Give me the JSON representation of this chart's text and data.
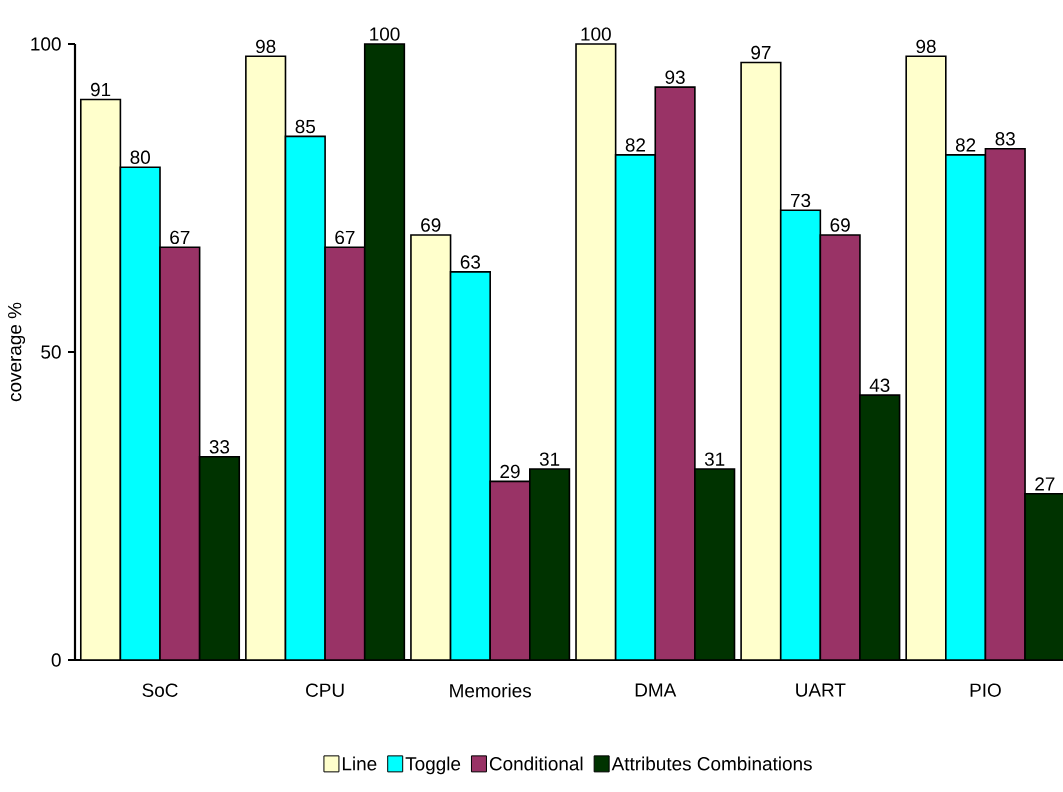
{
  "chart_data": {
    "type": "bar",
    "ylabel": "coverage %",
    "categories": [
      "SoC",
      "CPU",
      "Memories",
      "DMA",
      "UART",
      "PIO"
    ],
    "series": [
      {
        "name": "Line",
        "color": "#ffffcc",
        "values": [
          91,
          98,
          69,
          100,
          97,
          98
        ]
      },
      {
        "name": "Toggle",
        "color": "#00ffff",
        "values": [
          80,
          85,
          63,
          82,
          73,
          82
        ]
      },
      {
        "name": "Conditional",
        "color": "#993366",
        "values": [
          67,
          67,
          29,
          93,
          69,
          83
        ]
      },
      {
        "name": "Attributes Combinations",
        "color": "#003300",
        "values": [
          33,
          100,
          31,
          31,
          43,
          27
        ]
      }
    ],
    "ylim": [
      0,
      100
    ],
    "yticks": [
      0,
      50,
      100
    ],
    "grid": false,
    "legend": "bottom",
    "data_labels": true
  }
}
